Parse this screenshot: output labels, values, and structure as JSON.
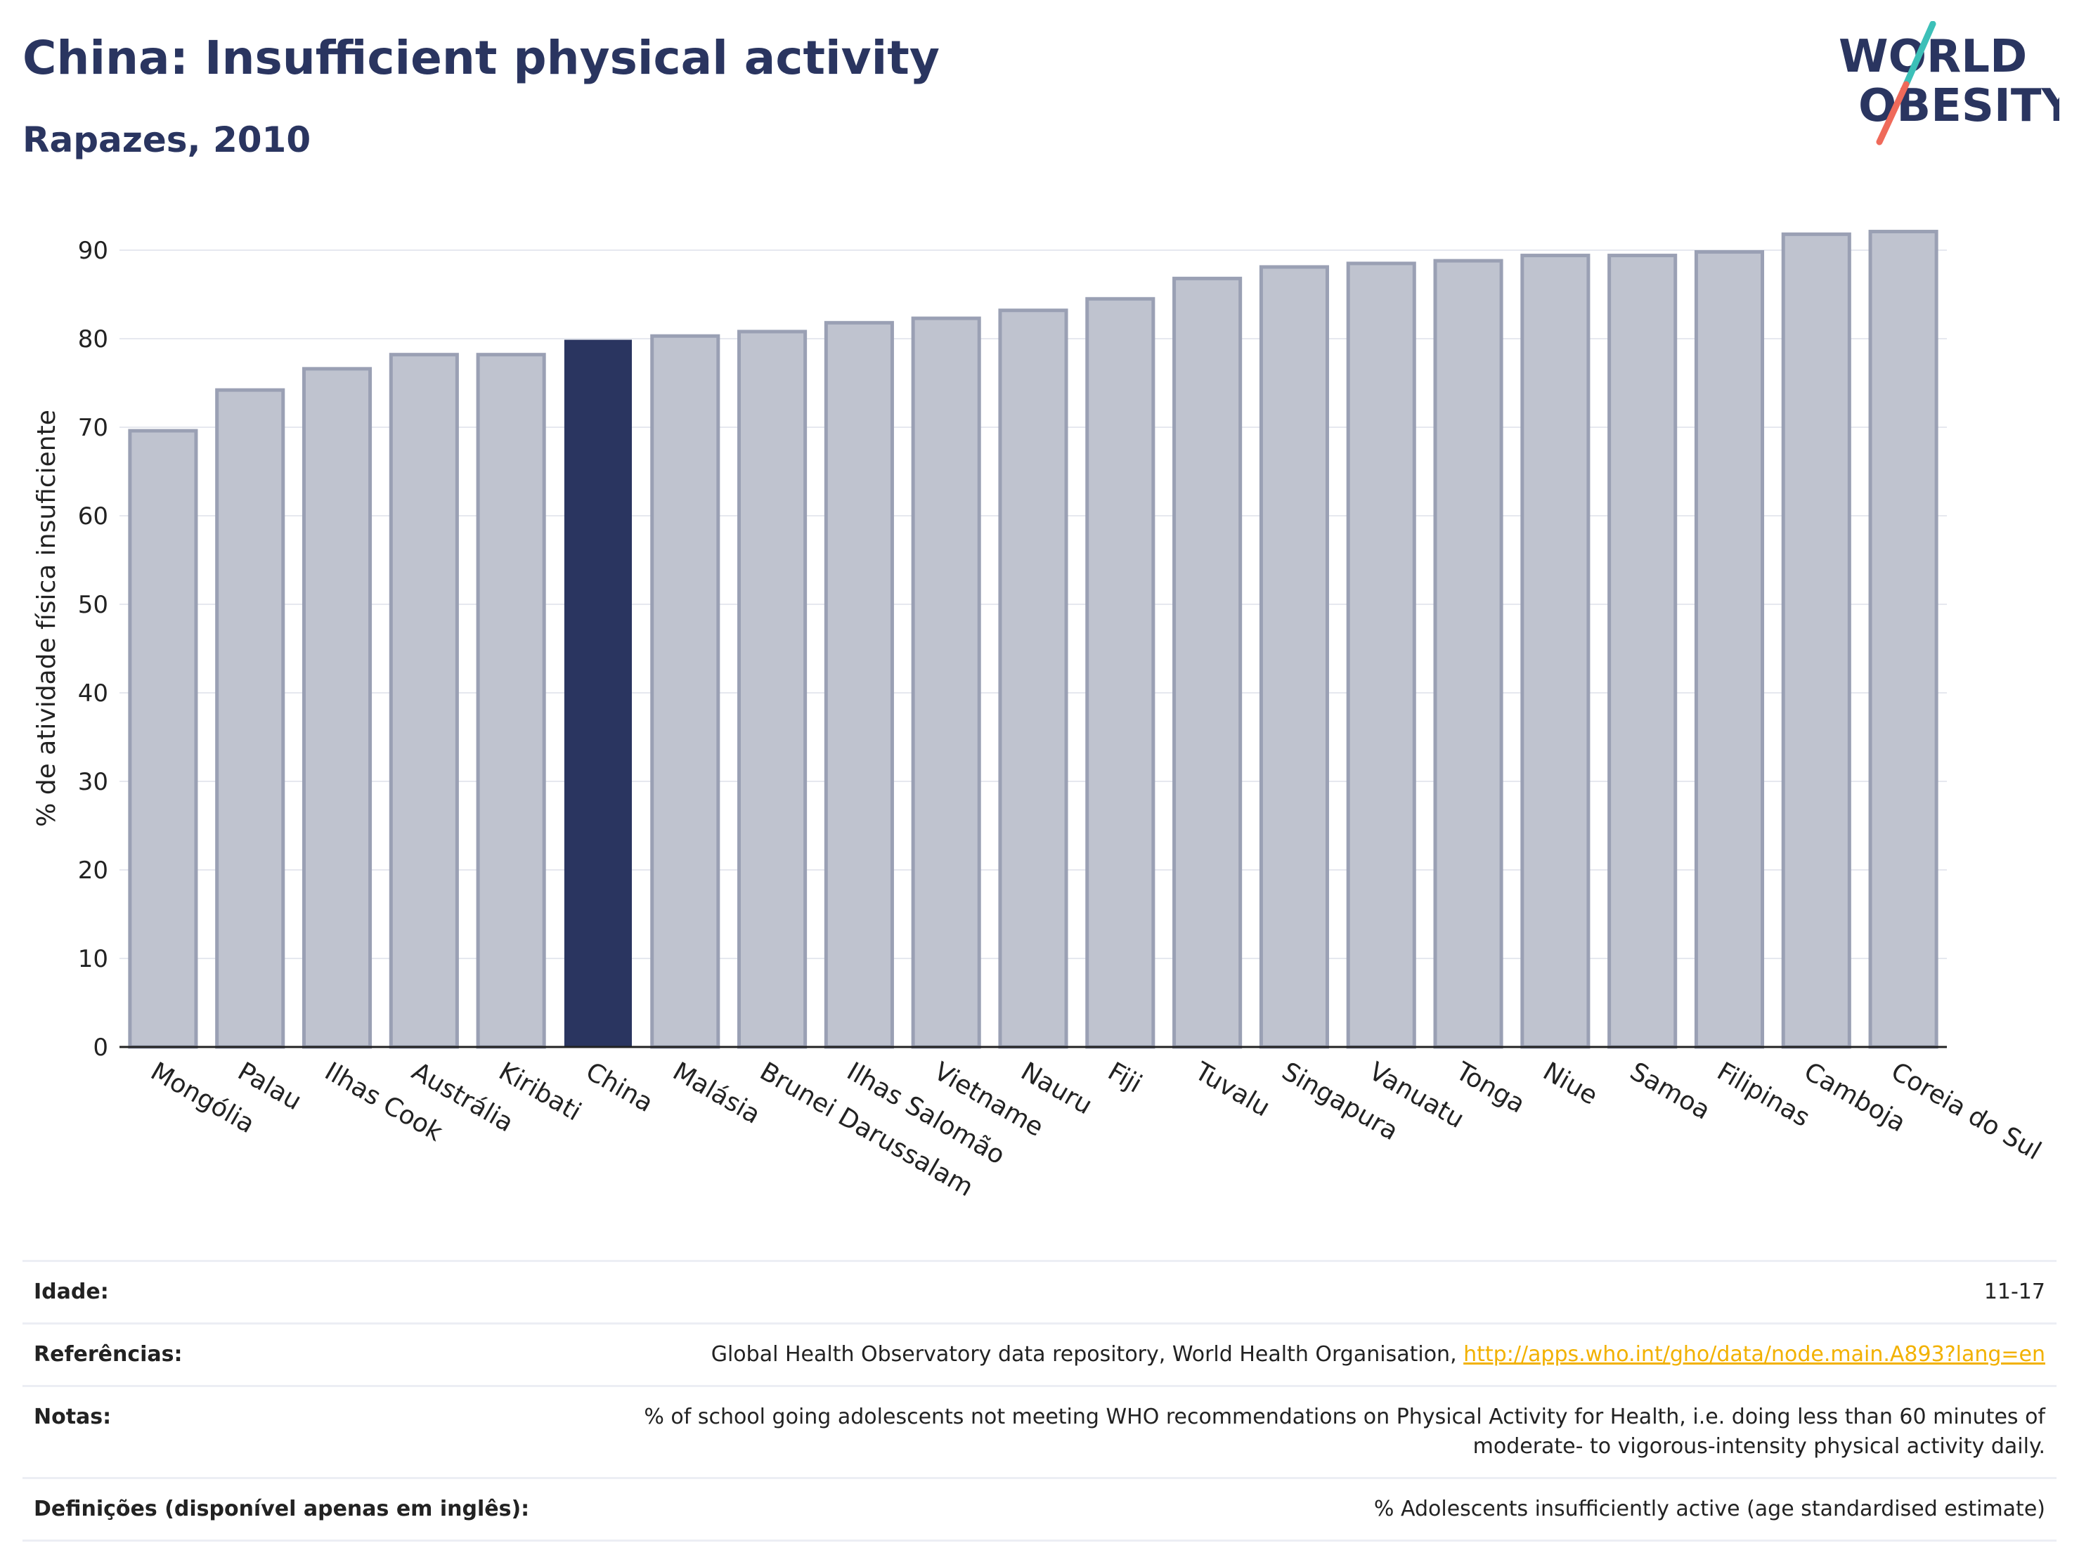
{
  "title": "China: Insufficient physical activity",
  "subtitle": "Rapazes, 2010",
  "logo": {
    "line1": "WORLD",
    "line2": "OBESITY"
  },
  "colors": {
    "highlight": "#2a3560",
    "bar_fill": "#bfc3cf",
    "bar_stroke": "#9aa0b4",
    "grid": "#e6e8ef",
    "link": "#f2b100",
    "logo_teal": "#3cc0b8",
    "logo_coral": "#ef6a5a"
  },
  "chart_data": {
    "type": "bar",
    "categories": [
      "Mongólia",
      "Palau",
      "Ilhas Cook",
      "Austrália",
      "Kiribati",
      "China",
      "Malásia",
      "Brunei Darussalam",
      "Ilhas Salomão",
      "Vietname",
      "Nauru",
      "Fiji",
      "Tuvalu",
      "Singapura",
      "Vanuatu",
      "Tonga",
      "Niue",
      "Samoa",
      "Filipinas",
      "Camboja",
      "Coreia do Sul"
    ],
    "values": [
      69.6,
      74.2,
      76.6,
      78.2,
      78.2,
      79.8,
      80.3,
      80.8,
      81.8,
      82.3,
      83.2,
      84.5,
      86.8,
      88.1,
      88.5,
      88.8,
      89.4,
      89.4,
      89.8,
      91.8,
      92.1
    ],
    "highlight": "China",
    "ylabel": "% de atividade física insuficiente",
    "xlabel": "",
    "ylim": [
      0,
      95
    ],
    "yticks": [
      0,
      10,
      20,
      30,
      40,
      50,
      60,
      70,
      80,
      90
    ],
    "grid": true
  },
  "info": {
    "age_label": "Idade:",
    "age_value": "11-17",
    "ref_label": "Referências:",
    "ref_text": "Global Health Observatory data repository, World Health Organisation, ",
    "ref_link": "http://apps.who.int/gho/data/node.main.A893?lang=en",
    "notes_label": "Notas:",
    "notes_value": "% of school going adolescents not meeting WHO recommendations on Physical Activity for Health, i.e. doing less than 60 minutes of moderate- to vigorous-intensity physical activity daily.",
    "def_label": "Definições (disponível apenas em inglês):",
    "def_value": "% Adolescents insufficiently active (age standardised estimate)"
  }
}
